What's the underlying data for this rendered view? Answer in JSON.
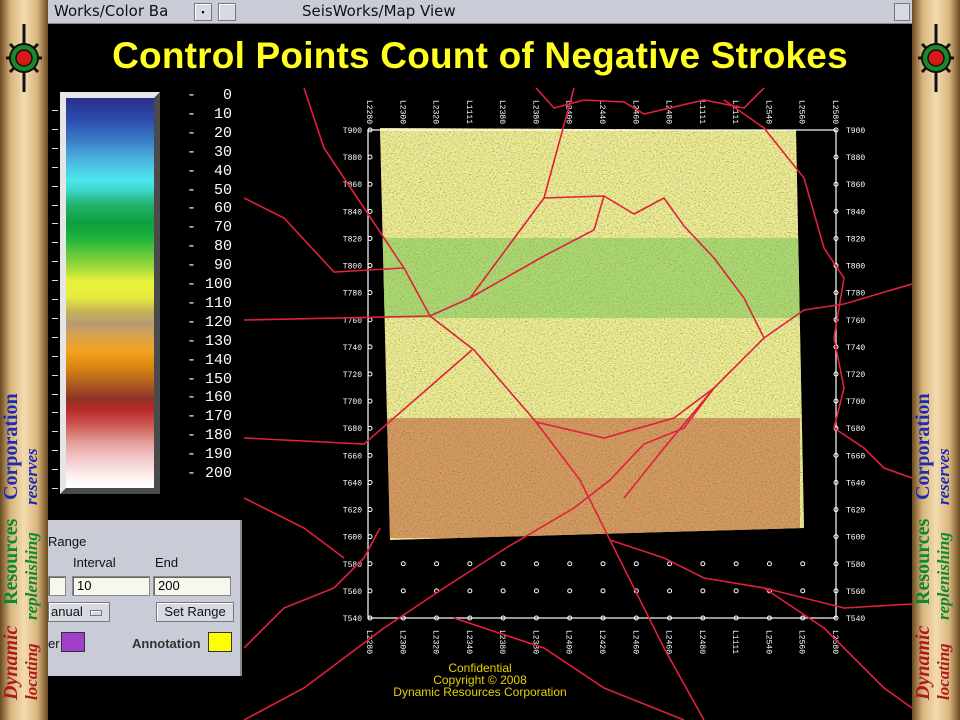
{
  "window": {
    "left_title": "Works/Color Ba",
    "main_title": "SeisWorks/Map View"
  },
  "slide": {
    "title": "Control Points Count of Negative Strokes",
    "title_color": "#ffff22",
    "footer": {
      "line1": "Confidential",
      "line2": "Copyright © 2008",
      "line3": "Dynamic Resources Corporation"
    }
  },
  "banner": {
    "words": [
      "Dynamic",
      "Resources",
      "Corporation"
    ],
    "tagline": [
      "locating",
      "replenishing",
      "reserves"
    ],
    "word_colors": [
      "#b01818",
      "#0a8a2a",
      "#1a2cb0"
    ]
  },
  "color_bar": {
    "labels": [
      "0",
      "10",
      "20",
      "30",
      "40",
      "50",
      "60",
      "70",
      "80",
      "90",
      "100",
      "110",
      "120",
      "130",
      "140",
      "150",
      "160",
      "170",
      "180",
      "190",
      "200"
    ]
  },
  "range_panel": {
    "section_label": "Range",
    "interval_label": "Interval",
    "end_label": "End",
    "interval_value": "10",
    "end_value": "200",
    "mode_value": "anual",
    "set_range_label": "Set Range",
    "layer_label": "er",
    "annotation_label": "Annotation",
    "layer_color": "#a040c8",
    "annotation_color": "#ffff00"
  },
  "map": {
    "top_axis_labels": [
      "L2280",
      "L2300",
      "L2320",
      "L1111",
      "L2380",
      "L2380",
      "L2400",
      "L2440",
      "L2460",
      "L2480",
      "L1111",
      "L1111",
      "L2540",
      "L2560",
      "L2580"
    ],
    "bottom_axis_labels": [
      "L2280",
      "L2300",
      "L2320",
      "L2340",
      "L2380",
      "L2380",
      "L2400",
      "L2420",
      "L2460",
      "L2460",
      "L2480",
      "L1111",
      "L2540",
      "L2560",
      "L2580"
    ],
    "left_axis_labels": [
      "T900",
      "T880",
      "T860",
      "T840",
      "T820",
      "T800",
      "T780",
      "T760",
      "T740",
      "T720",
      "T700",
      "T680",
      "T660",
      "T640",
      "T620",
      "T600",
      "T580",
      "T560",
      "T540"
    ],
    "right_axis_labels": [
      "T900",
      "T880",
      "T860",
      "T840",
      "T820",
      "T800",
      "T780",
      "T760",
      "T740",
      "T720",
      "T700",
      "T680",
      "T660",
      "T640",
      "T620",
      "T600",
      "T580",
      "T560",
      "T540"
    ],
    "boundary_color": "#e0203c"
  }
}
